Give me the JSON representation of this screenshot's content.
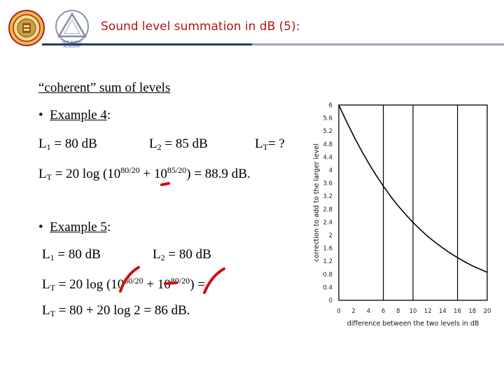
{
  "header": {
    "title": "Sound level summation in dB (5):",
    "logo2_text": "RCR AUDIO ACADEMY"
  },
  "slide": {
    "heading": "“coherent” sum of levels",
    "ex4_bullet": "•",
    "ex4_label": "Example 4",
    "ex4_colon": ":",
    "ex4_l1_a": "L",
    "ex4_l1_sub": "1",
    "ex4_l1_b": " = 80 dB",
    "ex4_l2_a": "L",
    "ex4_l2_sub": "2",
    "ex4_l2_b": " = 85 dB",
    "ex4_lt_a": "L",
    "ex4_lt_sub": "T",
    "ex4_lt_b": "= ?",
    "ex4_formula_a": "L",
    "ex4_formula_sub": "T",
    "ex4_formula_b": " = 20 log (10",
    "ex4_formula_sup1": "80/20",
    "ex4_formula_c": " + 10",
    "ex4_formula_sup2": "85/20",
    "ex4_formula_d": ") = 88.9 dB.",
    "ex5_bullet": "•",
    "ex5_label": "Example 5",
    "ex5_colon": ":",
    "ex5_l1_a": "L",
    "ex5_l1_sub": "1",
    "ex5_l1_b": " = 80 dB",
    "ex5_l2_a": "L",
    "ex5_l2_sub": "2",
    "ex5_l2_b": " = 80 dB",
    "ex5_formula_a": "L",
    "ex5_formula_sub": "T",
    "ex5_formula_b": " = 20 log (10",
    "ex5_formula_sup1": "80/20",
    "ex5_formula_c": " + 10",
    "ex5_formula_sup2": "80/20",
    "ex5_formula_d": ") =",
    "ex5_result_a": "L",
    "ex5_result_sub": "T",
    "ex5_result_b": " = 80 + 20 log 2 = 86 dB."
  },
  "colors": {
    "title": "#b01515",
    "annotation": "#cc1111",
    "rule_blue": "#1f3a76",
    "rule_gray": "#9aa9bd"
  },
  "chart_data": {
    "type": "line",
    "title": "",
    "xlabel": "difference between the two levels in dB",
    "ylabel": "correction to add to the larger level",
    "xlim": [
      0,
      20
    ],
    "ylim": [
      0,
      6
    ],
    "x_ticks": [
      "0",
      "2",
      "4",
      "6",
      "8",
      "10",
      "12",
      "14",
      "16",
      "18",
      "20"
    ],
    "y_ticks": [
      "0",
      "0.4",
      "0.8",
      "1.2",
      "1.6",
      "2",
      "2.4",
      "2.8",
      "3.2",
      "3.6",
      "4",
      "4.4",
      "4.8",
      "5.2",
      "5.6",
      "6"
    ],
    "vertical_gridlines_at": [
      6,
      10,
      16
    ],
    "grid": "partial",
    "series": [
      {
        "x": [
          0,
          1,
          2,
          3,
          4,
          5,
          6,
          7,
          8,
          9,
          10,
          11,
          12,
          13,
          14,
          15,
          16,
          17,
          18,
          19,
          20
        ],
        "y": [
          6.0,
          5.51,
          5.05,
          4.62,
          4.22,
          3.85,
          3.51,
          3.19,
          2.9,
          2.64,
          2.39,
          2.17,
          1.96,
          1.78,
          1.61,
          1.45,
          1.31,
          1.18,
          1.06,
          0.96,
          0.86
        ]
      }
    ]
  },
  "annotations": {
    "marks": [
      {
        "name": "red-dash-mark-ex4"
      },
      {
        "name": "red-check-mark-1"
      },
      {
        "name": "red-dash-mark-ex5"
      },
      {
        "name": "red-check-mark-2"
      }
    ]
  }
}
